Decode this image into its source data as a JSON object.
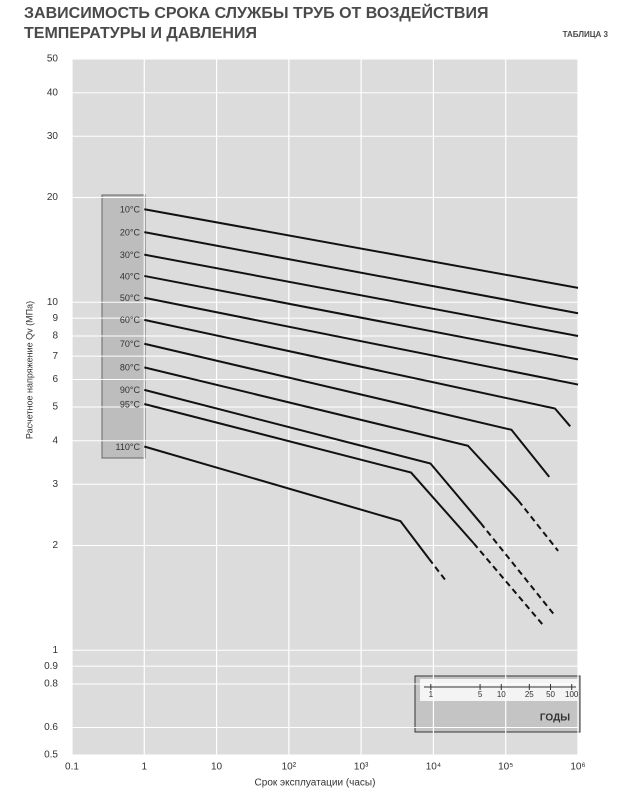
{
  "chart_data": {
    "type": "line",
    "title": "ЗАВИСИМОСТЬ СРОКА СЛУЖБЫ ТРУБ ОТ ВОЗДЕЙСТВИЯ ТЕМПЕРАТУРЫ И ДАВЛЕНИЯ",
    "subtitle": "ТАБЛИЦА 3",
    "x_label": "Срок эксплуатации (часы)",
    "y_label": "Расчетное напряжение Qv (МПа)",
    "x_log": true,
    "y_log": true,
    "grid": true,
    "xlim": [
      0.1,
      1000000
    ],
    "ylim": [
      0.5,
      50
    ],
    "xticks": [
      0.1,
      1,
      10,
      {
        "value": 100,
        "label": "10²"
      },
      {
        "value": 1000,
        "label": "10³"
      },
      {
        "value": 10000,
        "label": "10⁴"
      },
      {
        "value": 100000,
        "label": "10⁵"
      },
      {
        "value": 1000000,
        "label": "10⁶"
      }
    ],
    "yticks": [
      0.5,
      0.6,
      0.8,
      0.9,
      1,
      2,
      3,
      4,
      5,
      6,
      7,
      8,
      9,
      10,
      20,
      30,
      40,
      50
    ],
    "series": [
      {
        "name": "10°C",
        "color": "#111111",
        "x": [
          1,
          1000000
        ],
        "values": [
          18.5,
          11.0
        ]
      },
      {
        "name": "20°C",
        "color": "#111111",
        "x": [
          1,
          1000000
        ],
        "values": [
          15.9,
          9.3
        ]
      },
      {
        "name": "30°C",
        "color": "#111111",
        "x": [
          1,
          1000000
        ],
        "values": [
          13.7,
          8.0
        ]
      },
      {
        "name": "40°C",
        "color": "#111111",
        "x": [
          1,
          1000000
        ],
        "values": [
          11.9,
          6.85
        ]
      },
      {
        "name": "50°C",
        "color": "#111111",
        "x": [
          1,
          1000000
        ],
        "values": [
          10.3,
          5.8
        ]
      },
      {
        "name": "60°C",
        "color": "#111111",
        "x": [
          1,
          480000,
          780000
        ],
        "values": [
          8.9,
          4.95,
          4.4
        ]
      },
      {
        "name": "70°C",
        "color": "#111111",
        "x": [
          1,
          120000,
          400000
        ],
        "values": [
          7.6,
          4.3,
          3.15
        ]
      },
      {
        "name": "80°C",
        "color": "#111111",
        "x": [
          1,
          30000,
          150000
        ],
        "values": [
          6.5,
          3.87,
          2.69
        ],
        "x_extrapolated": [
          150000,
          530000
        ],
        "values_extrapolated": [
          2.69,
          1.93
        ]
      },
      {
        "name": "90°C",
        "color": "#111111",
        "x": [
          1,
          9100,
          45000
        ],
        "values": [
          5.6,
          3.44,
          2.32
        ],
        "x_extrapolated": [
          45000,
          490000
        ],
        "values_extrapolated": [
          2.32,
          1.25
        ]
      },
      {
        "name": "95°C",
        "color": "#111111",
        "x": [
          1,
          4900,
          36000
        ],
        "values": [
          5.1,
          3.24,
          2.03
        ],
        "x_extrapolated": [
          36000,
          330000
        ],
        "values_extrapolated": [
          2.03,
          1.18
        ]
      },
      {
        "name": "110°C",
        "color": "#111111",
        "x": [
          1,
          3500,
          8700
        ],
        "values": [
          3.85,
          2.35,
          1.83
        ],
        "x_extrapolated": [
          8700,
          15000
        ],
        "values_extrapolated": [
          1.83,
          1.58
        ]
      }
    ],
    "inset": {
      "label": "ГОДЫ",
      "x_log": true,
      "xlim": [
        0.8,
        115
      ],
      "xticks": [
        1,
        5,
        10,
        25,
        50,
        100
      ]
    }
  }
}
